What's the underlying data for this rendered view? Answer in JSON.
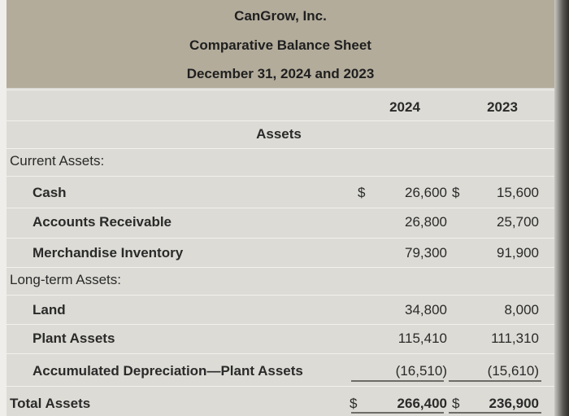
{
  "header": {
    "company": "CanGrow, Inc.",
    "title": "Comparative Balance Sheet",
    "date": "December 31, 2024 and 2023"
  },
  "table": {
    "columns": [
      "2024",
      "2023"
    ],
    "section": "Assets",
    "rows": [
      {
        "label": "Current Assets:"
      },
      {
        "label": "Cash",
        "sign1": "$",
        "v1": "26,600",
        "sign2": "$",
        "v2": "15,600"
      },
      {
        "label": "Accounts Receivable",
        "v1": "26,800",
        "v2": "25,700"
      },
      {
        "label": "Merchandise Inventory",
        "v1": "79,300",
        "v2": "91,900"
      },
      {
        "label": "Long-term Assets:"
      },
      {
        "label": "Land",
        "v1": "34,800",
        "v2": "8,000"
      },
      {
        "label": "Plant Assets",
        "v1": "115,410",
        "v2": "111,310"
      },
      {
        "label": "Accumulated Depreciation—Plant Assets",
        "v1": "(16,510)",
        "v2": "(15,610)"
      },
      {
        "label": "Total Assets",
        "sign1": "$",
        "v1": "266,400",
        "sign2": "$",
        "v2": "236,900"
      }
    ]
  }
}
